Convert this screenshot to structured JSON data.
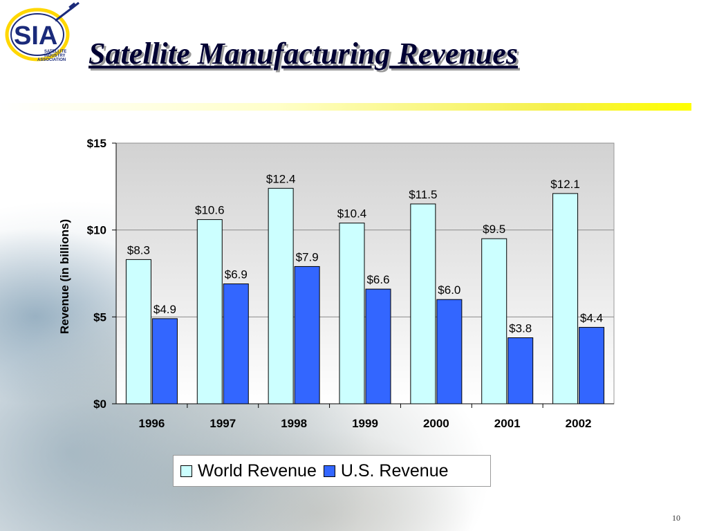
{
  "slide": {
    "title": "Satellite Manufacturing Revenues",
    "page_number": "10",
    "logo": {
      "text": "SIA",
      "subtext": [
        "SATELLITE",
        "INDUSTRY",
        "ASSOCIATION"
      ]
    }
  },
  "colors": {
    "world": "#ccffff",
    "us": "#3366ff",
    "title": "#000033",
    "accent_bar": "#ffff00"
  },
  "chart_data": {
    "type": "bar",
    "title": "",
    "xlabel": "",
    "ylabel": "Revenue (in billions)",
    "ylim": [
      0,
      15
    ],
    "yticks": [
      0,
      5,
      10,
      15
    ],
    "ytick_labels": [
      "$0",
      "$5",
      "$10",
      "$15"
    ],
    "grid": true,
    "legend_position": "bottom",
    "categories": [
      "1996",
      "1997",
      "1998",
      "1999",
      "2000",
      "2001",
      "2002"
    ],
    "series": [
      {
        "name": "World Revenue",
        "values": [
          8.3,
          10.6,
          12.4,
          10.4,
          11.5,
          9.5,
          12.1
        ],
        "labels": [
          "$8.3",
          "$10.6",
          "$12.4",
          "$10.4",
          "$11.5",
          "$9.5",
          "$12.1"
        ]
      },
      {
        "name": "U.S. Revenue",
        "values": [
          4.9,
          6.9,
          7.9,
          6.6,
          6.0,
          3.8,
          4.4
        ],
        "labels": [
          "$4.9",
          "$6.9",
          "$7.9",
          "$6.6",
          "$6.0",
          "$3.8",
          "$4.4"
        ]
      }
    ]
  }
}
